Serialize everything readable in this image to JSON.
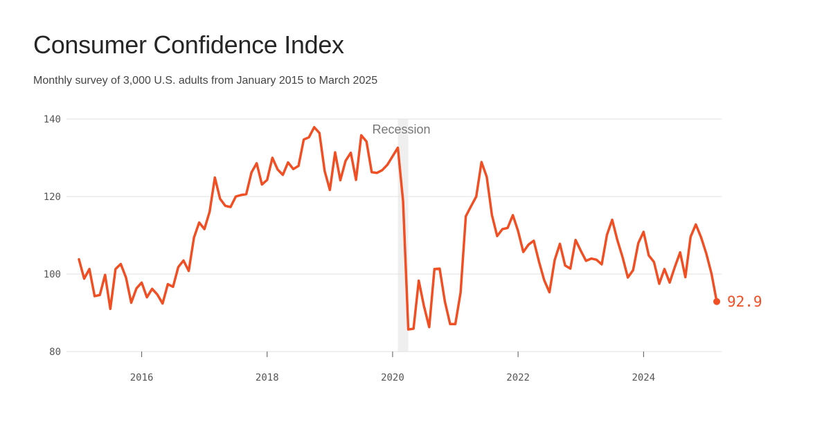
{
  "title": "Consumer Confidence Index",
  "subtitle": "Monthly survey of 3,000 U.S. adults from January 2015 to March 2025",
  "colors": {
    "line": "#f04e23",
    "grid": "#e2e2e2",
    "band": "#efefef",
    "axis": "#555555"
  },
  "chart_data": {
    "type": "line",
    "title": "Consumer Confidence Index",
    "subtitle": "Monthly survey of 3,000 U.S. adults from January 2015 to March 2025",
    "xlabel": "",
    "ylabel": "",
    "x_start": "2015-01",
    "x_end": "2025-03",
    "x_ticks": [
      {
        "label": "2016",
        "year": 2016
      },
      {
        "label": "2018",
        "year": 2018
      },
      {
        "label": "2020",
        "year": 2020
      },
      {
        "label": "2022",
        "year": 2022
      },
      {
        "label": "2024",
        "year": 2024
      }
    ],
    "y_ticks": [
      {
        "label": "80",
        "value": 80
      },
      {
        "label": "100",
        "value": 100
      },
      {
        "label": "120",
        "value": 120
      },
      {
        "label": "140",
        "value": 140
      }
    ],
    "ylim": [
      80,
      140
    ],
    "grid": true,
    "band": {
      "label": "Recession",
      "start": "2020-02",
      "end": "2020-04"
    },
    "end_label": "92.9",
    "series": [
      {
        "values": [
          103.8,
          98.8,
          101.3,
          94.3,
          94.6,
          99.8,
          91.0,
          101.3,
          102.6,
          99.1,
          92.6,
          96.3,
          97.8,
          94.0,
          96.2,
          94.7,
          92.4,
          97.4,
          96.7,
          101.8,
          103.5,
          100.8,
          109.4,
          113.3,
          111.6,
          116.1,
          124.9,
          119.4,
          117.6,
          117.3,
          120.0,
          120.4,
          120.6,
          126.2,
          128.6,
          123.1,
          124.3,
          130.0,
          127.0,
          125.6,
          128.8,
          127.1,
          127.9,
          134.7,
          135.3,
          137.9,
          136.4,
          126.6,
          121.7,
          131.4,
          124.2,
          129.2,
          131.3,
          124.3,
          135.8,
          134.2,
          126.3,
          126.1,
          126.8,
          128.2,
          130.4,
          132.6,
          118.8,
          85.7,
          85.9,
          98.3,
          91.7,
          86.3,
          101.3,
          101.4,
          92.9,
          87.1,
          87.1,
          95.2,
          114.9,
          117.5,
          120.0,
          128.9,
          125.1,
          115.2,
          109.8,
          111.6,
          111.9,
          115.2,
          111.1,
          105.7,
          107.6,
          108.6,
          103.2,
          98.4,
          95.3,
          103.6,
          107.8,
          102.2,
          101.4,
          108.8,
          106.0,
          103.4,
          104.0,
          103.7,
          102.5,
          110.1,
          114.0,
          108.7,
          104.3,
          99.1,
          101.0,
          108.0,
          110.9,
          104.8,
          103.1,
          97.5,
          101.3,
          97.8,
          101.9,
          105.6,
          99.2,
          109.6,
          112.8,
          109.5,
          105.3,
          100.1,
          92.9
        ]
      }
    ]
  }
}
